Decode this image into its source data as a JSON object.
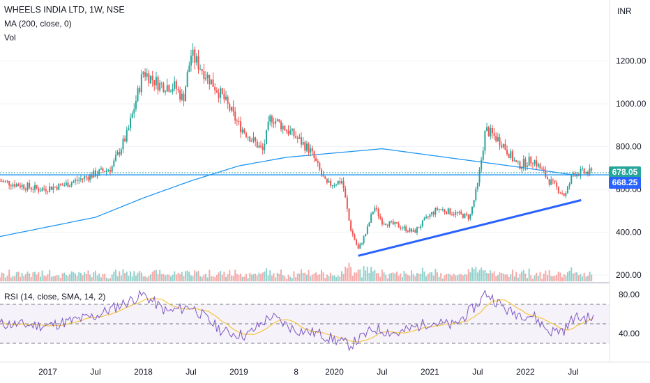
{
  "chart_data": {
    "type": "candlestick",
    "symbol_title": "WHEELS INDIA LTD, 1W, NSE",
    "ma_label": "MA (200, close, 0)",
    "vol_label": "Vol",
    "rsi_label": "RSI (14, close, SMA, 14, 2)",
    "currency": "INR",
    "last_price": "678.05",
    "ma_value": "668.25",
    "price_axis": {
      "ticks": [
        "200.00",
        "400.00",
        "600.00",
        "800.00",
        "1000.00",
        "1200.00"
      ],
      "range": [
        180,
        1400
      ]
    },
    "rsi_axis": {
      "ticks": [
        "40.00",
        "80.00"
      ],
      "bands": [
        30,
        50,
        70
      ]
    },
    "x_axis": {
      "ticks": [
        "2017",
        "Jul",
        "2018",
        "Jul",
        "2019",
        "8",
        "2020",
        "Jul",
        "2021",
        "Jul",
        "2022",
        "Jul"
      ]
    },
    "price_anchors": [
      [
        "2016-07",
        640
      ],
      [
        "2016-12",
        600
      ],
      [
        "2017-03",
        620
      ],
      [
        "2017-06",
        660
      ],
      [
        "2017-09",
        700
      ],
      [
        "2017-11",
        860
      ],
      [
        "2018-01",
        1150
      ],
      [
        "2018-03",
        1090
      ],
      [
        "2018-05",
        1080
      ],
      [
        "2018-06",
        1020
      ],
      [
        "2018-07",
        1230
      ],
      [
        "2018-09",
        1130
      ],
      [
        "2018-11",
        1030
      ],
      [
        "2019-01",
        900
      ],
      [
        "2019-04",
        780
      ],
      [
        "2019-05",
        940
      ],
      [
        "2019-08",
        850
      ],
      [
        "2019-10",
        780
      ],
      [
        "2019-12",
        620
      ],
      [
        "2020-02",
        640
      ],
      [
        "2020-03",
        420
      ],
      [
        "2020-04",
        320
      ],
      [
        "2020-05",
        400
      ],
      [
        "2020-06",
        520
      ],
      [
        "2020-07",
        450
      ],
      [
        "2020-09",
        430
      ],
      [
        "2020-11",
        400
      ],
      [
        "2021-01",
        480
      ],
      [
        "2021-02",
        510
      ],
      [
        "2021-04",
        490
      ],
      [
        "2021-06",
        470
      ],
      [
        "2021-07",
        620
      ],
      [
        "2021-08",
        880
      ],
      [
        "2021-10",
        820
      ],
      [
        "2021-12",
        710
      ],
      [
        "2022-02",
        740
      ],
      [
        "2022-04",
        640
      ],
      [
        "2022-06",
        570
      ],
      [
        "2022-07",
        678
      ]
    ],
    "ma200_anchors": [
      [
        "2016-07",
        380
      ],
      [
        "2017-07",
        470
      ],
      [
        "2018-01",
        560
      ],
      [
        "2018-07",
        640
      ],
      [
        "2019-01",
        710
      ],
      [
        "2019-07",
        750
      ],
      [
        "2020-01",
        770
      ],
      [
        "2020-07",
        790
      ],
      [
        "2021-01",
        760
      ],
      [
        "2021-07",
        730
      ],
      [
        "2022-01",
        700
      ],
      [
        "2022-07",
        668
      ]
    ],
    "rsi_anchors": [
      [
        "2016-07",
        50
      ],
      [
        "2017-01",
        48
      ],
      [
        "2017-07",
        58
      ],
      [
        "2018-01",
        80
      ],
      [
        "2018-04",
        62
      ],
      [
        "2018-07",
        68
      ],
      [
        "2018-11",
        42
      ],
      [
        "2019-02",
        38
      ],
      [
        "2019-05",
        58
      ],
      [
        "2019-08",
        44
      ],
      [
        "2019-11",
        40
      ],
      [
        "2020-03",
        28
      ],
      [
        "2020-06",
        45
      ],
      [
        "2020-09",
        40
      ],
      [
        "2021-01",
        52
      ],
      [
        "2021-04",
        48
      ],
      [
        "2021-07",
        70
      ],
      [
        "2021-08",
        82
      ],
      [
        "2021-11",
        62
      ],
      [
        "2022-02",
        58
      ],
      [
        "2022-04",
        42
      ],
      [
        "2022-06",
        44
      ],
      [
        "2022-07",
        56
      ]
    ],
    "trendline": {
      "from": [
        "2020-04",
        290
      ],
      "to": [
        "2022-08",
        550
      ]
    },
    "colors": {
      "up": "#26a69a",
      "down": "#ef5350",
      "ma": "#2196f3",
      "rsi": "#7e57c2",
      "rsi_ma": "#f5c542",
      "trend": "#2962ff",
      "last_price": "#26a69a",
      "ma_badge": "#2962ff"
    }
  }
}
